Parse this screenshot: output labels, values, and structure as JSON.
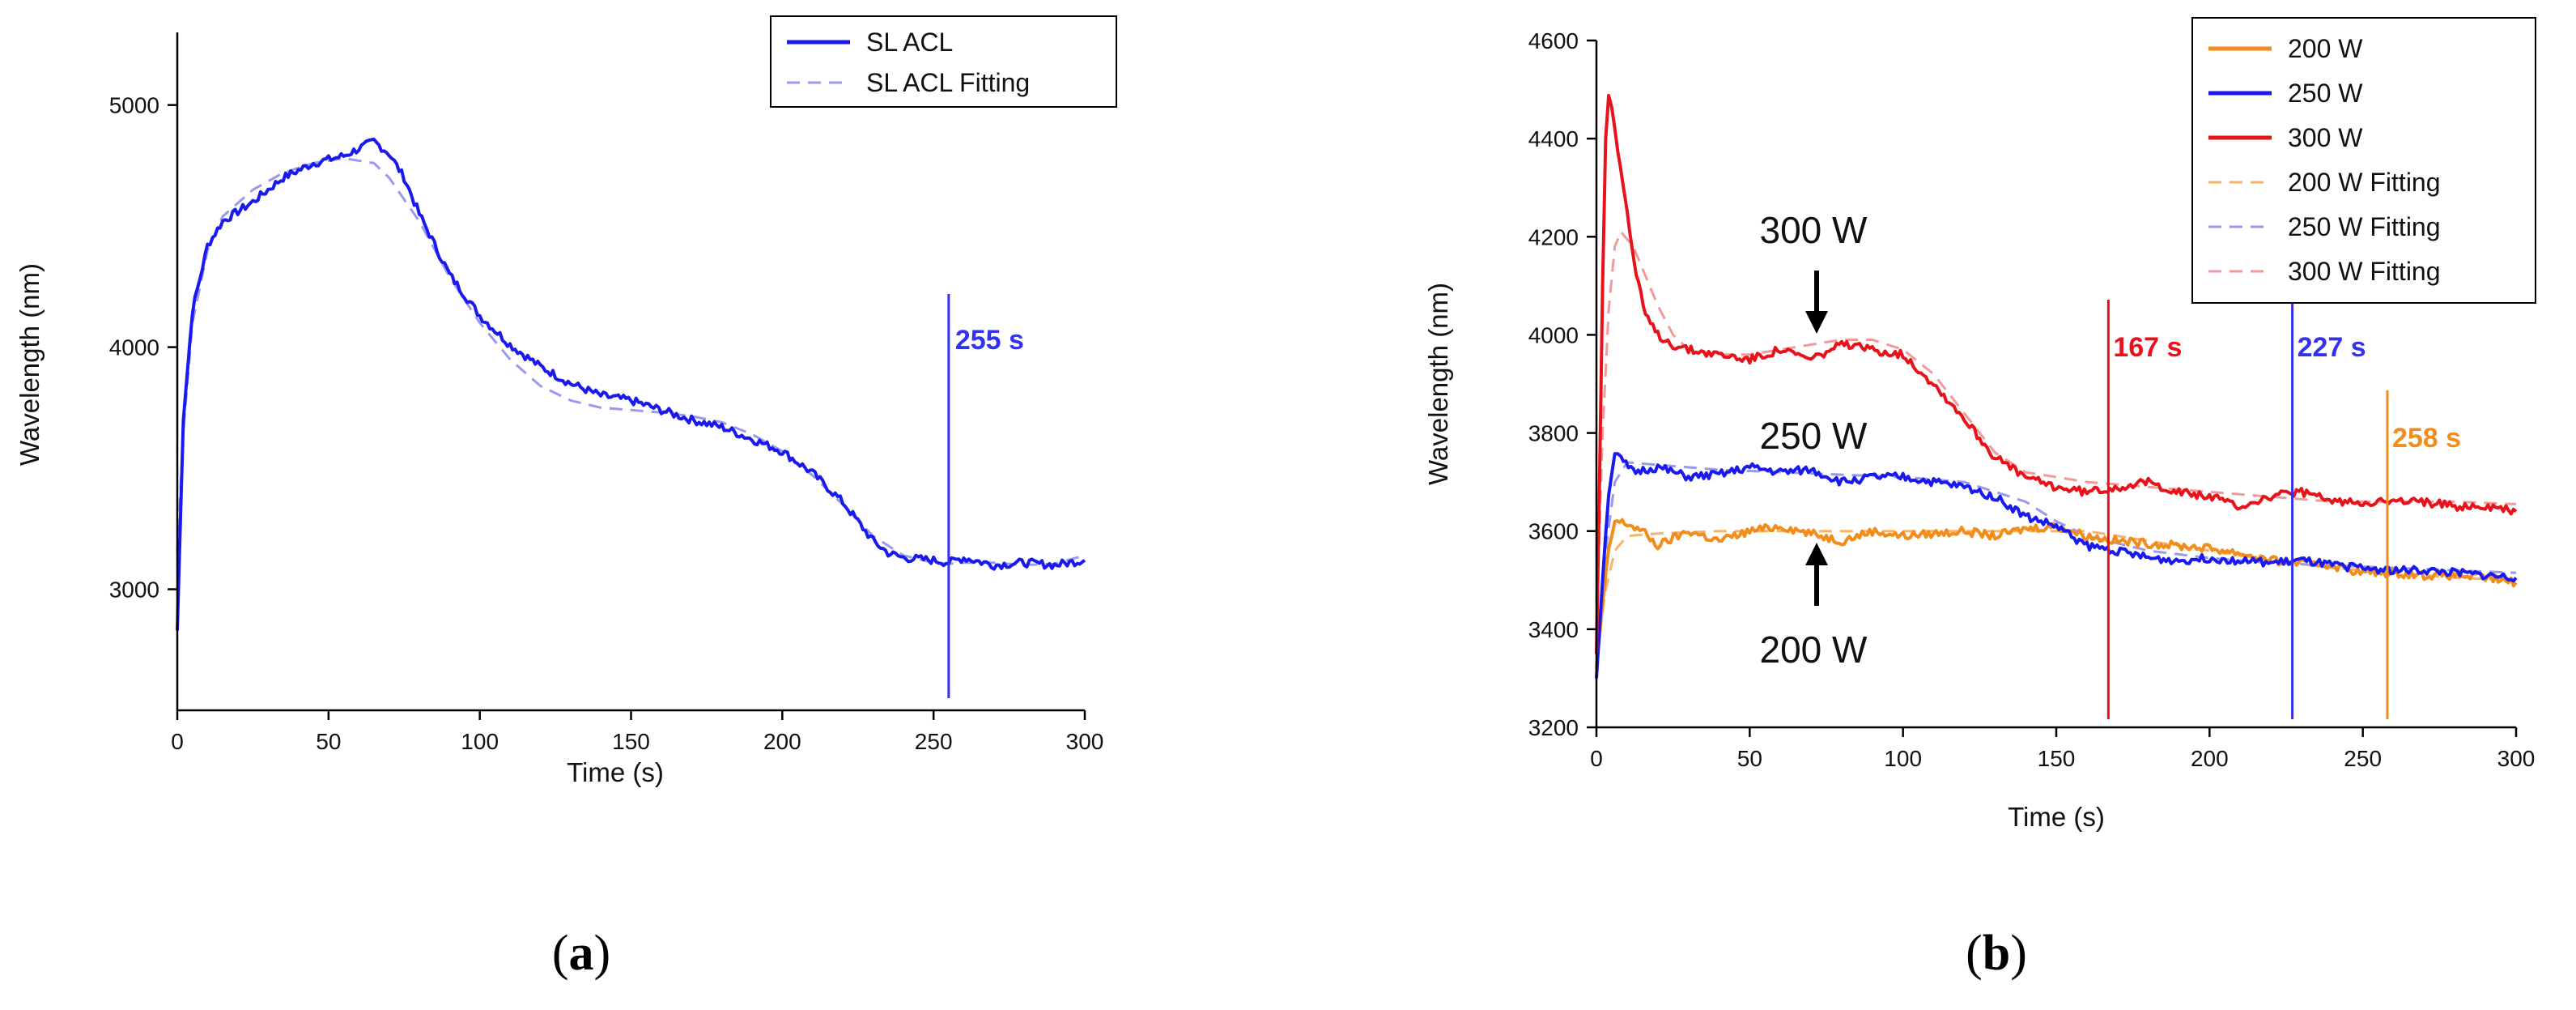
{
  "chart_data": [
    {
      "type": "line",
      "panel": "(a)",
      "panel_letter": "a",
      "xlabel": "Time (s)",
      "ylabel": "Wavelength (nm)",
      "xlim": [
        0,
        300
      ],
      "ylim": [
        2500,
        5300
      ],
      "xticks": [
        0,
        50,
        100,
        150,
        200,
        250,
        300
      ],
      "yticks": [
        3000,
        4000,
        5000
      ],
      "legend_position": "top-right",
      "series": [
        {
          "name": "SL ACL",
          "style": "solid",
          "color": "#1a1aee",
          "x": [
            0,
            2,
            5,
            10,
            15,
            25,
            35,
            45,
            55,
            60,
            65,
            70,
            75,
            80,
            90,
            100,
            110,
            120,
            130,
            140,
            150,
            160,
            170,
            180,
            190,
            200,
            210,
            220,
            230,
            235,
            240,
            250,
            255,
            260,
            270,
            280,
            290,
            300
          ],
          "y": [
            2830,
            3700,
            4150,
            4420,
            4520,
            4600,
            4700,
            4760,
            4790,
            4820,
            4850,
            4800,
            4700,
            4550,
            4300,
            4130,
            4010,
            3920,
            3850,
            3800,
            3780,
            3740,
            3700,
            3670,
            3620,
            3570,
            3480,
            3360,
            3200,
            3150,
            3130,
            3120,
            3110,
            3130,
            3100,
            3110,
            3100,
            3120
          ]
        },
        {
          "name": "SL ACL Fitting",
          "style": "dashed",
          "color": "#9999ee",
          "x": [
            0,
            2,
            5,
            10,
            15,
            25,
            35,
            45,
            55,
            65,
            70,
            80,
            90,
            100,
            110,
            120,
            130,
            140,
            150,
            160,
            170,
            180,
            190,
            200,
            210,
            220,
            230,
            240,
            250,
            255,
            260,
            270,
            280,
            290,
            300
          ],
          "y": [
            3150,
            3650,
            4100,
            4400,
            4540,
            4650,
            4720,
            4760,
            4780,
            4760,
            4700,
            4520,
            4290,
            4100,
            3950,
            3840,
            3780,
            3750,
            3740,
            3730,
            3715,
            3690,
            3640,
            3570,
            3470,
            3350,
            3220,
            3140,
            3110,
            3105,
            3110,
            3110,
            3100,
            3105,
            3140
          ]
        }
      ],
      "markers": [
        {
          "x": 255,
          "label": "255 s",
          "color": "#3333ee"
        }
      ]
    },
    {
      "type": "line",
      "panel": "(b)",
      "panel_letter": "b",
      "xlabel": "Time (s)",
      "ylabel": "Wavelength (nm)",
      "xlim": [
        0,
        300
      ],
      "ylim": [
        3200,
        4600
      ],
      "xticks": [
        0,
        50,
        100,
        150,
        200,
        250,
        300
      ],
      "yticks": [
        3200,
        3400,
        3600,
        3800,
        4000,
        4200,
        4400,
        4600
      ],
      "legend_position": "top-right",
      "series": [
        {
          "name": "200 W",
          "style": "solid",
          "color": "#f28c1a",
          "x": [
            0,
            2,
            4,
            6,
            10,
            15,
            20,
            30,
            40,
            50,
            60,
            70,
            80,
            90,
            100,
            110,
            120,
            130,
            140,
            150,
            160,
            170,
            180,
            190,
            200,
            210,
            220,
            230,
            240,
            250,
            260,
            270,
            280,
            290,
            300
          ],
          "y": [
            3320,
            3450,
            3560,
            3620,
            3615,
            3600,
            3570,
            3600,
            3580,
            3600,
            3610,
            3595,
            3580,
            3600,
            3590,
            3595,
            3600,
            3590,
            3605,
            3610,
            3590,
            3580,
            3575,
            3570,
            3565,
            3555,
            3540,
            3535,
            3530,
            3515,
            3515,
            3510,
            3510,
            3505,
            3495
          ]
        },
        {
          "name": "250 W",
          "style": "solid",
          "color": "#1a1af0",
          "x": [
            0,
            2,
            4,
            6,
            8,
            12,
            20,
            30,
            40,
            50,
            60,
            70,
            80,
            90,
            100,
            110,
            120,
            130,
            140,
            150,
            160,
            170,
            180,
            190,
            200,
            210,
            220,
            230,
            240,
            250,
            260,
            270,
            280,
            290,
            300
          ],
          "y": [
            3300,
            3500,
            3680,
            3760,
            3745,
            3720,
            3730,
            3710,
            3715,
            3730,
            3720,
            3725,
            3700,
            3710,
            3710,
            3700,
            3690,
            3670,
            3630,
            3610,
            3570,
            3560,
            3545,
            3540,
            3545,
            3540,
            3535,
            3540,
            3530,
            3525,
            3520,
            3520,
            3515,
            3510,
            3505
          ]
        },
        {
          "name": "300 W",
          "style": "solid",
          "color": "#e8121a",
          "x": [
            0,
            1,
            2,
            3,
            4,
            5,
            7,
            10,
            13,
            16,
            20,
            25,
            30,
            40,
            50,
            60,
            70,
            80,
            90,
            100,
            105,
            110,
            120,
            130,
            140,
            150,
            160,
            170,
            180,
            190,
            200,
            210,
            220,
            230,
            240,
            250,
            260,
            270,
            280,
            290,
            300
          ],
          "y": [
            3350,
            3700,
            4100,
            4400,
            4490,
            4470,
            4380,
            4250,
            4120,
            4040,
            4000,
            3980,
            3970,
            3960,
            3950,
            3970,
            3950,
            3980,
            3970,
            3960,
            3930,
            3900,
            3830,
            3750,
            3710,
            3690,
            3680,
            3690,
            3700,
            3680,
            3670,
            3650,
            3670,
            3680,
            3660,
            3660,
            3660,
            3660,
            3650,
            3650,
            3640
          ]
        },
        {
          "name": "200 W Fitting",
          "style": "dashed",
          "color": "#f7b36b",
          "x": [
            0,
            3,
            6,
            10,
            20,
            40,
            60,
            80,
            100,
            120,
            140,
            160,
            180,
            200,
            220,
            240,
            260,
            280,
            300
          ],
          "y": [
            3350,
            3480,
            3560,
            3590,
            3595,
            3600,
            3600,
            3600,
            3600,
            3600,
            3600,
            3600,
            3580,
            3560,
            3540,
            3525,
            3515,
            3505,
            3500
          ]
        },
        {
          "name": "250 W Fitting",
          "style": "dashed",
          "color": "#9999ee",
          "x": [
            0,
            3,
            6,
            10,
            20,
            40,
            60,
            80,
            100,
            120,
            140,
            150,
            160,
            180,
            200,
            220,
            240,
            260,
            280,
            300
          ],
          "y": [
            3350,
            3560,
            3700,
            3740,
            3735,
            3725,
            3720,
            3715,
            3710,
            3700,
            3660,
            3620,
            3590,
            3560,
            3545,
            3535,
            3530,
            3525,
            3520,
            3515
          ]
        },
        {
          "name": "300 W Fitting",
          "style": "dashed",
          "color": "#f29a9a",
          "x": [
            0,
            2,
            4,
            6,
            8,
            12,
            16,
            20,
            25,
            30,
            40,
            50,
            60,
            70,
            80,
            90,
            100,
            110,
            120,
            130,
            140,
            160,
            180,
            200,
            220,
            240,
            260,
            280,
            300
          ],
          "y": [
            3400,
            3800,
            4050,
            4180,
            4210,
            4180,
            4120,
            4060,
            4000,
            3970,
            3960,
            3960,
            3970,
            3980,
            3990,
            3990,
            3970,
            3920,
            3840,
            3760,
            3720,
            3700,
            3690,
            3680,
            3670,
            3660,
            3660,
            3660,
            3655
          ]
        }
      ],
      "markers": [
        {
          "x": 167,
          "label": "167 s",
          "color": "#e8121a"
        },
        {
          "x": 227,
          "label": "227 s",
          "color": "#3333ee"
        },
        {
          "x": 258,
          "label": "258 s",
          "color": "#f28c1a"
        }
      ],
      "annotations": [
        {
          "text": "300 W",
          "x": 70,
          "y": 4000,
          "arrow": "down"
        },
        {
          "text": "250 W",
          "x": 70,
          "y": 3770,
          "arrow": "none"
        },
        {
          "text": "200 W",
          "x": 70,
          "y": 3600,
          "arrow": "up"
        }
      ]
    }
  ]
}
